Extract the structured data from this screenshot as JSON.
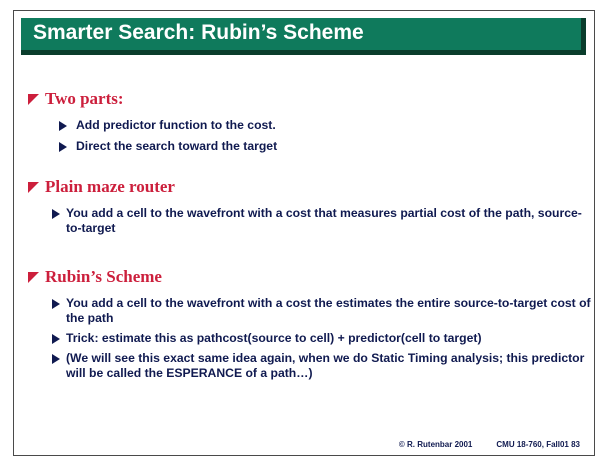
{
  "slide": {
    "title": "Smarter Search:  Rubin’s Scheme",
    "sections": [
      {
        "heading": "Two parts:",
        "bullets": [
          "Add predictor function to the cost.",
          "Direct the search toward the target"
        ]
      },
      {
        "heading": "Plain maze router",
        "bullets": [
          "You add a cell to the wavefront with a cost that measures partial cost of the path, source-to-target"
        ]
      },
      {
        "heading": "Rubin’s Scheme",
        "bullets": [
          "You add a cell to the wavefront with a cost the estimates the entire source-to-target cost of the path",
          "Trick: estimate this as pathcost(source to cell) + predictor(cell to target)",
          "(We will see this exact same idea again, when we do Static Timing analysis; this predictor will be called the ESPERANCE of a path…)"
        ]
      }
    ],
    "footer": {
      "copyright": "© R. Rutenbar 2001",
      "course_page": "CMU 18-760, Fall01  83"
    }
  },
  "colors": {
    "title_bar": "#0f7a5c",
    "title_bar_shadow": "#0a3d2c",
    "heading": "#cc1f3c",
    "body_text": "#101a50"
  }
}
